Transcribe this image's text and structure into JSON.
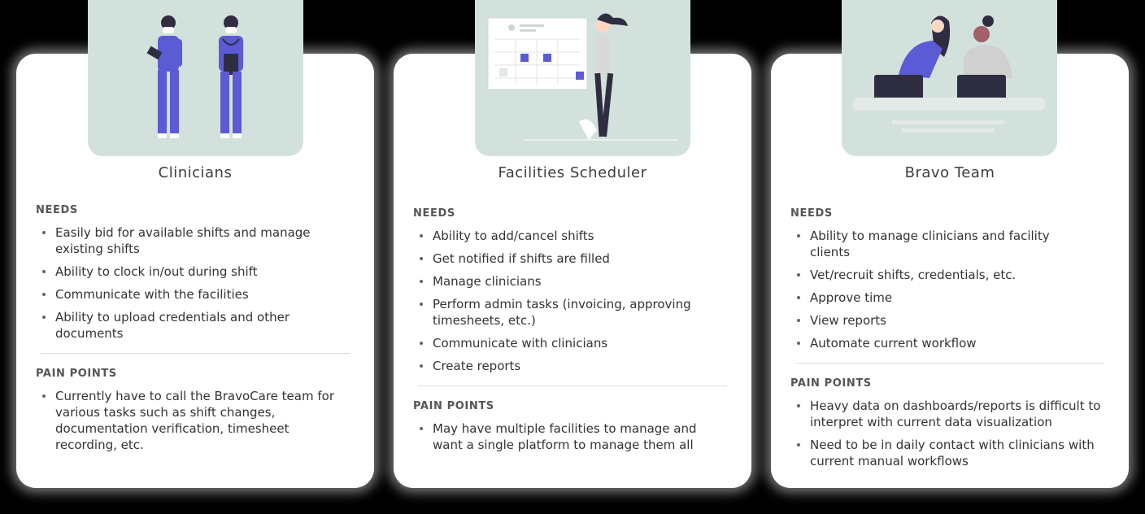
{
  "colors": {
    "illustration_bg": "#d3e1dc",
    "accent_purple": "#5b5bd6",
    "dark_figure": "#2f2e41"
  },
  "cards": [
    {
      "title": "Clinicians",
      "needs_label": "NEEDS",
      "needs": [
        "Easily bid for available shifts and manage existing shifts",
        "Ability to clock in/out during shift",
        "Communicate with the facilities",
        "Ability to upload credentials and other documents"
      ],
      "pain_label": "PAIN POINTS",
      "pain_points": [
        "Currently have to call the BravoCare team for various tasks such as shift changes, documentation verification, timesheet recording, etc."
      ]
    },
    {
      "title": "Facilities Scheduler",
      "needs_label": "NEEDS",
      "needs": [
        "Ability to add/cancel shifts",
        "Get notified if shifts are filled",
        "Manage clinicians",
        "Perform admin tasks (invoicing, approving timesheets, etc.)",
        "Communicate with clinicians",
        "Create reports"
      ],
      "pain_label": "PAIN POINTS",
      "pain_points": [
        "May have multiple facilities to manage and want a single platform to manage them all"
      ]
    },
    {
      "title": "Bravo Team",
      "needs_label": "NEEDS",
      "needs": [
        "Ability to manage clinicians and facility clients",
        "Vet/recruit shifts, credentials, etc.",
        "Approve time",
        "View reports",
        "Automate current workflow"
      ],
      "pain_label": "PAIN POINTS",
      "pain_points": [
        "Heavy data on dashboards/reports is difficult to interpret with current data visualization",
        "Need to be in daily contact with clinicians with current manual workflows"
      ]
    }
  ]
}
